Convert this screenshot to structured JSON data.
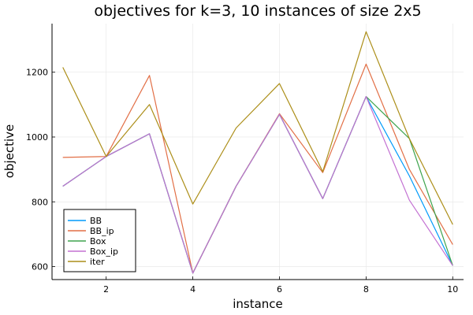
{
  "chart_data": {
    "type": "line",
    "title": "objectives for k=3, 10 instances of size 2x5",
    "xlabel": "instance",
    "ylabel": "objective",
    "x": [
      1,
      2,
      3,
      4,
      5,
      6,
      7,
      8,
      9,
      10
    ],
    "xlim": [
      0.75,
      10.25
    ],
    "ylim": [
      560,
      1350
    ],
    "xticks": [
      2,
      4,
      6,
      8,
      10
    ],
    "yticks": [
      600,
      800,
      1000,
      1200
    ],
    "grid": true,
    "legend_position": "bottom-left",
    "series": [
      {
        "name": "BB",
        "color": "#009AFA",
        "values": [
          848,
          940,
          1010,
          580,
          848,
          1070,
          810,
          1125,
          880,
          603
        ]
      },
      {
        "name": "BB_ip",
        "color": "#E26F46",
        "values": [
          937,
          940,
          1190,
          580,
          848,
          1072,
          890,
          1225,
          900,
          668
        ]
      },
      {
        "name": "Box",
        "color": "#3EA44E",
        "values": [
          848,
          940,
          1010,
          580,
          848,
          1070,
          810,
          1125,
          995,
          603
        ]
      },
      {
        "name": "Box_ip",
        "color": "#C371D2",
        "values": [
          848,
          940,
          1010,
          580,
          848,
          1070,
          810,
          1125,
          805,
          603
        ]
      },
      {
        "name": "iter",
        "color": "#AC8E18",
        "values": [
          1215,
          940,
          1100,
          793,
          1028,
          1165,
          893,
          1325,
          995,
          730
        ]
      }
    ]
  }
}
